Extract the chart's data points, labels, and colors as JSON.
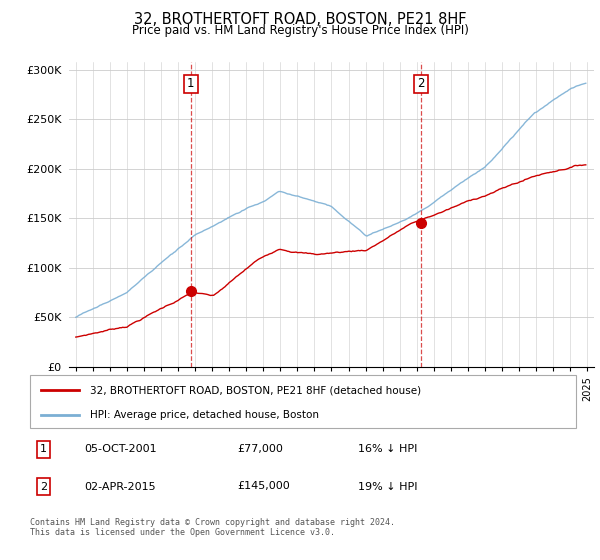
{
  "title": "32, BROTHERTOFT ROAD, BOSTON, PE21 8HF",
  "subtitle": "Price paid vs. HM Land Registry's House Price Index (HPI)",
  "sale1_date": "05-OCT-2001",
  "sale1_price": 77000,
  "sale1_hpi": "16% ↓ HPI",
  "sale1_label": "1",
  "sale2_date": "02-APR-2015",
  "sale2_price": 145000,
  "sale2_hpi": "19% ↓ HPI",
  "sale2_label": "2",
  "legend_house": "32, BROTHERTOFT ROAD, BOSTON, PE21 8HF (detached house)",
  "legend_hpi": "HPI: Average price, detached house, Boston",
  "footer": "Contains HM Land Registry data © Crown copyright and database right 2024.\nThis data is licensed under the Open Government Licence v3.0.",
  "house_color": "#cc0000",
  "hpi_color": "#7bafd4",
  "sale_line_color": "#cc0000",
  "yticks": [
    0,
    50000,
    100000,
    150000,
    200000,
    250000,
    300000
  ],
  "grid_color": "#cccccc",
  "sale1_x": 2001.75,
  "sale2_x": 2015.25,
  "xstart": 1995,
  "xend": 2025
}
